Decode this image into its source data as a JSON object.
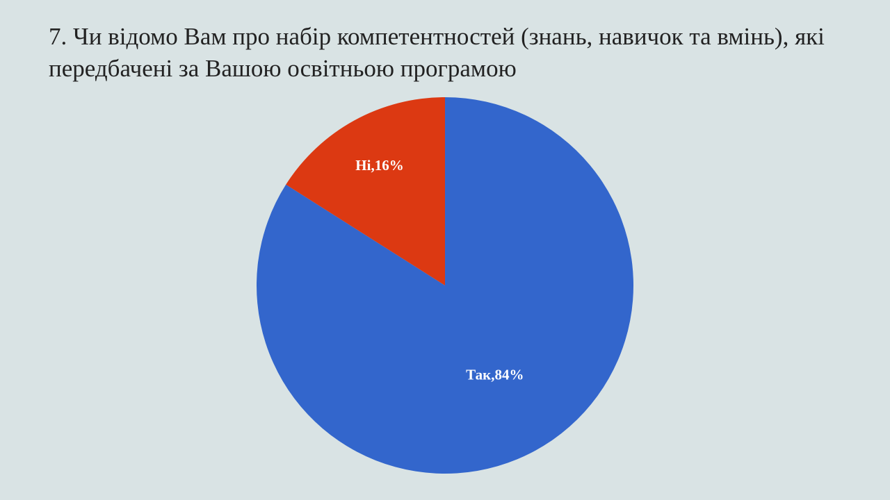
{
  "chart_data": {
    "type": "pie",
    "title": "7. Чи відомо Вам про набір компетентностей (знань, навичок та вмінь), які передбачені за Вашою освітньою програмою",
    "values": [
      84,
      16
    ],
    "value_labels": [
      "Так,84%",
      "Ні,16%"
    ],
    "colors": [
      "#3366cc",
      "#dc3912"
    ]
  }
}
